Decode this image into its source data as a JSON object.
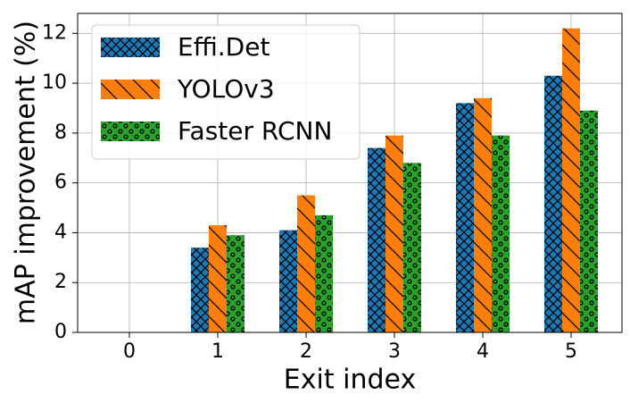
{
  "chart_data": {
    "type": "bar",
    "x_label": "Exit index",
    "y_label": "mAP improvement (%)",
    "categories": [
      "0",
      "1",
      "2",
      "3",
      "4",
      "5"
    ],
    "series": [
      {
        "name": "Effi.Det",
        "color": "#1f77b4",
        "hatch": "xx",
        "values": [
          0,
          3.4,
          4.1,
          7.4,
          9.2,
          10.3
        ]
      },
      {
        "name": "YOLOv3",
        "color": "#ff7f0e",
        "hatch": "\\",
        "values": [
          0,
          4.3,
          5.5,
          7.9,
          9.4,
          12.2
        ]
      },
      {
        "name": "Faster RCNN",
        "color": "#2ca02c",
        "hatch": "o",
        "values": [
          0,
          3.9,
          4.7,
          6.8,
          7.9,
          8.9
        ]
      }
    ],
    "ylim": [
      0,
      12.8
    ],
    "yticks": [
      0,
      2,
      4,
      6,
      8,
      10,
      12
    ],
    "grid": true,
    "legend": "upper left"
  }
}
